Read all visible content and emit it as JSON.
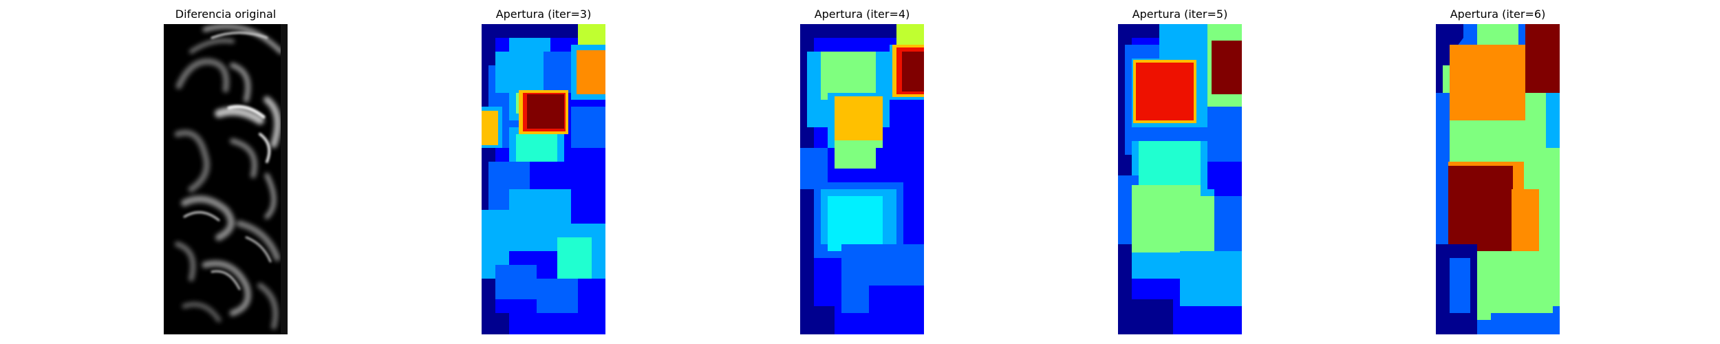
{
  "figure": {
    "panels": [
      {
        "title": "Diferencia original",
        "colormap": "gray"
      },
      {
        "title": "Apertura (iter=3)",
        "colormap": "jet"
      },
      {
        "title": "Apertura (iter=4)",
        "colormap": "jet"
      },
      {
        "title": "Apertura (iter=5)",
        "colormap": "jet"
      },
      {
        "title": "Apertura (iter=6)",
        "colormap": "jet"
      }
    ]
  },
  "colors": {
    "background": "#ffffff",
    "jet_dark_blue": "#00008f",
    "jet_blue": "#0000ff",
    "jet_mid_blue": "#0060ff",
    "jet_sky": "#00b0ff",
    "jet_cyan": "#00f0ff",
    "jet_teal": "#20ffd0",
    "jet_green": "#7fff7f",
    "jet_yellow_green": "#c0ff30",
    "jet_yellow": "#ffc000",
    "jet_orange": "#ff8c00",
    "jet_red": "#ee1100",
    "jet_dark_red": "#800000"
  }
}
